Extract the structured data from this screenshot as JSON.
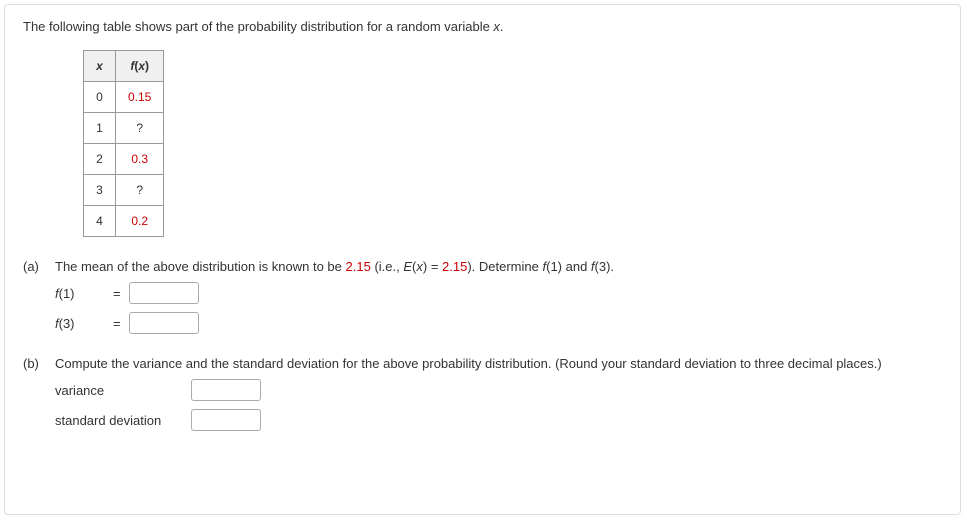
{
  "intro": {
    "text_before_x": "The following table shows part of the probability distribution for a random variable ",
    "var": "x",
    "period": "."
  },
  "table": {
    "header_x": "x",
    "header_fx_f": "f",
    "header_fx_x": "x",
    "rows": [
      {
        "x": "0",
        "fx": "0.15",
        "highlight": true
      },
      {
        "x": "1",
        "fx": "?",
        "highlight": false
      },
      {
        "x": "2",
        "fx": "0.3",
        "highlight": true
      },
      {
        "x": "3",
        "fx": "?",
        "highlight": false
      },
      {
        "x": "4",
        "fx": "0.2",
        "highlight": true
      }
    ]
  },
  "part_a": {
    "label": "(a)",
    "text1": "The mean of the above distribution is known to be ",
    "val1": "2.15",
    "text2": " (i.e., ",
    "E": "E",
    "x": "x",
    "eq": " = ",
    "val2": "2.15",
    "text3": "). Determine ",
    "f": "f",
    "one": "(1)",
    "and": " and ",
    "three": "(3).",
    "ans1_f": "f",
    "ans1_arg": "(1)",
    "ans1_eq": "=",
    "ans2_f": "f",
    "ans2_arg": "(3)",
    "ans2_eq": "="
  },
  "part_b": {
    "label": "(b)",
    "text": "Compute the variance and the standard deviation for the above probability distribution. (Round your standard deviation to three decimal places.)",
    "var_label": "variance",
    "sd_label": "standard deviation"
  }
}
